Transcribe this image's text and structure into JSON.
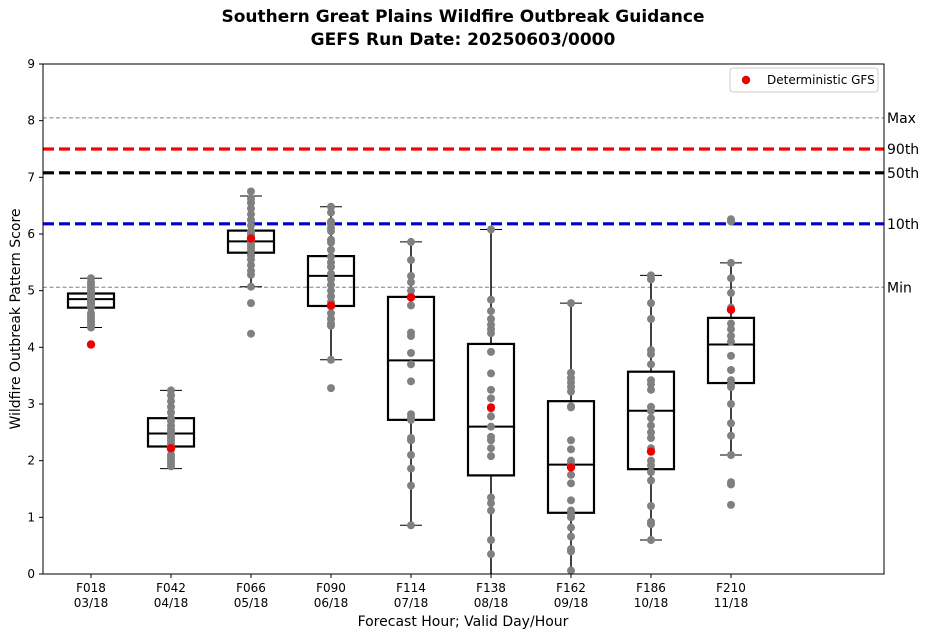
{
  "chart_data": {
    "type": "box",
    "title": "Southern Great Plains Wildfire Outbreak Guidance",
    "subtitle": "GEFS Run Date: 20250603/0000",
    "xlabel": "Forecast Hour; Valid Day/Hour",
    "ylabel": "Wildfire Outbreak Pattern Score",
    "ylim": [
      0,
      9
    ],
    "yticks": [
      "0",
      "1",
      "2",
      "3",
      "4",
      "5",
      "6",
      "7",
      "8",
      "9"
    ],
    "grid": false,
    "legend": {
      "placement": "top-right",
      "entries": [
        "Deterministic GFS"
      ]
    },
    "categories": [
      {
        "hour": "F018",
        "valid": "03/18"
      },
      {
        "hour": "F042",
        "valid": "04/18"
      },
      {
        "hour": "F066",
        "valid": "05/18"
      },
      {
        "hour": "F090",
        "valid": "06/18"
      },
      {
        "hour": "F114",
        "valid": "07/18"
      },
      {
        "hour": "F138",
        "valid": "08/18"
      },
      {
        "hour": "F162",
        "valid": "09/18"
      },
      {
        "hour": "F186",
        "valid": "10/18"
      },
      {
        "hour": "F210",
        "valid": "11/18"
      }
    ],
    "boxes": [
      {
        "whislo": 4.35,
        "q1": 4.7,
        "med": 4.85,
        "q3": 4.95,
        "whishi": 5.22
      },
      {
        "whislo": 1.86,
        "q1": 2.25,
        "med": 2.48,
        "q3": 2.75,
        "whishi": 3.24
      },
      {
        "whislo": 5.07,
        "q1": 5.67,
        "med": 5.87,
        "q3": 6.06,
        "whishi": 6.67
      },
      {
        "whislo": 3.78,
        "q1": 4.73,
        "med": 5.26,
        "q3": 5.61,
        "whishi": 6.48
      },
      {
        "whislo": 0.86,
        "q1": 2.72,
        "med": 3.77,
        "q3": 4.89,
        "whishi": 5.86
      },
      {
        "whislo": 0.0,
        "q1": 1.74,
        "med": 2.6,
        "q3": 4.06,
        "whishi": 6.08
      },
      {
        "whislo": 0.0,
        "q1": 1.08,
        "med": 1.93,
        "q3": 3.05,
        "whishi": 4.78
      },
      {
        "whislo": 0.6,
        "q1": 1.85,
        "med": 2.88,
        "q3": 3.57,
        "whishi": 5.27
      },
      {
        "whislo": 2.1,
        "q1": 3.37,
        "med": 4.05,
        "q3": 4.52,
        "whishi": 5.49
      }
    ],
    "members": [
      [
        5.22,
        5.15,
        5.1,
        5.05,
        5.0,
        4.95,
        4.92,
        4.88,
        4.85,
        4.82,
        4.8,
        4.78,
        4.75,
        4.72,
        4.7,
        4.6,
        4.55,
        4.5,
        4.45,
        4.4,
        4.35
      ],
      [
        3.24,
        3.15,
        3.05,
        2.95,
        2.85,
        2.75,
        2.7,
        2.62,
        2.55,
        2.5,
        2.45,
        2.4,
        2.35,
        2.3,
        2.25,
        2.2,
        2.1,
        2.05,
        2.0,
        1.95,
        1.9
      ],
      [
        6.75,
        6.62,
        6.55,
        6.45,
        6.35,
        6.25,
        6.15,
        6.05,
        6.0,
        5.95,
        5.9,
        5.85,
        5.8,
        5.75,
        5.7,
        5.62,
        5.55,
        5.45,
        5.35,
        5.28,
        5.07,
        4.78,
        4.24
      ],
      [
        6.48,
        6.38,
        6.22,
        6.18,
        6.1,
        6.05,
        5.9,
        5.85,
        5.72,
        5.6,
        5.5,
        5.42,
        5.3,
        5.2,
        5.1,
        5.0,
        4.9,
        4.8,
        4.72,
        4.6,
        4.5,
        4.42,
        4.38,
        3.78,
        3.28
      ],
      [
        5.86,
        5.54,
        5.26,
        5.15,
        5.0,
        4.9,
        4.74,
        4.26,
        4.2,
        3.9,
        3.7,
        3.4,
        2.82,
        2.76,
        2.72,
        2.4,
        2.36,
        2.1,
        1.86,
        1.56,
        0.86
      ],
      [
        6.08,
        4.84,
        4.64,
        4.5,
        4.4,
        4.32,
        4.25,
        3.92,
        3.54,
        3.25,
        3.1,
        2.92,
        2.78,
        2.6,
        2.42,
        2.36,
        2.22,
        2.08,
        1.35,
        1.25,
        1.12,
        0.6,
        0.35
      ],
      [
        4.78,
        3.55,
        3.46,
        3.38,
        3.3,
        3.22,
        2.96,
        2.94,
        2.36,
        2.2,
        2.0,
        1.95,
        1.75,
        1.6,
        1.3,
        1.12,
        1.06,
        1.0,
        0.82,
        0.66,
        0.44,
        0.4,
        0.06
      ],
      [
        5.27,
        5.2,
        4.78,
        4.5,
        3.95,
        3.88,
        3.7,
        3.42,
        3.35,
        3.25,
        2.95,
        2.88,
        2.75,
        2.62,
        2.5,
        2.4,
        2.22,
        2.0,
        1.92,
        1.8,
        1.65,
        1.2,
        0.92,
        0.88,
        0.6
      ],
      [
        6.26,
        6.22,
        5.49,
        5.22,
        4.96,
        4.7,
        4.42,
        4.32,
        4.2,
        4.1,
        3.85,
        3.6,
        3.42,
        3.35,
        3.3,
        3.0,
        2.66,
        2.44,
        2.1,
        1.62,
        1.58,
        1.22
      ]
    ],
    "deterministic": [
      4.05,
      2.22,
      5.92,
      4.74,
      4.88,
      2.94,
      1.88,
      2.16,
      4.66
    ],
    "reference_lines": [
      {
        "label": "Max",
        "value": 8.05,
        "color": "#808080",
        "style": "dashed-thin"
      },
      {
        "label": "90th",
        "value": 7.5,
        "color": "#ff0000",
        "style": "dashed-thick"
      },
      {
        "label": "50th",
        "value": 7.08,
        "color": "#000000",
        "style": "dashed-thick"
      },
      {
        "label": "10th",
        "value": 6.18,
        "color": "#0000cc",
        "style": "dashed-thick"
      },
      {
        "label": "Min",
        "value": 5.06,
        "color": "#808080",
        "style": "dashed-thin"
      }
    ],
    "colors": {
      "members": "#808080",
      "deterministic": "#ee0000",
      "box": "#000000"
    }
  }
}
